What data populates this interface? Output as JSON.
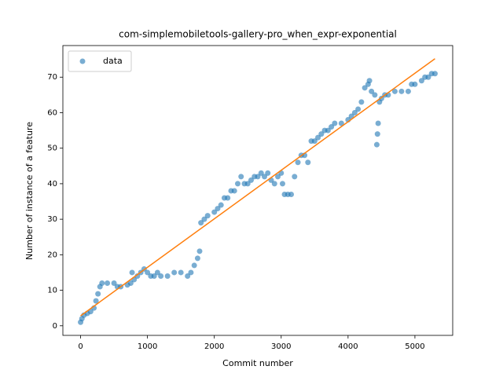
{
  "chart_data": {
    "type": "scatter",
    "title": "com-simplemobiletools-gallery-pro_when_expr-exponential",
    "x_label": "Commit number",
    "y_label": "Number of instance of a feature",
    "legend": "upper left",
    "xlim": [
      -265,
      5565
    ],
    "ylim": [
      -2.7,
      78.9
    ],
    "xticks": [
      0,
      1000,
      2000,
      3000,
      4000,
      5000
    ],
    "yticks": [
      0,
      10,
      20,
      30,
      40,
      50,
      60,
      70
    ],
    "series": [
      {
        "name": "data",
        "kind": "scatter",
        "color": "#1f77b4",
        "x": [
          0,
          20,
          50,
          100,
          150,
          200,
          230,
          260,
          290,
          320,
          400,
          500,
          550,
          600,
          700,
          750,
          770,
          800,
          850,
          900,
          950,
          1000,
          1050,
          1100,
          1150,
          1200,
          1300,
          1400,
          1500,
          1600,
          1650,
          1700,
          1750,
          1780,
          1800,
          1850,
          1900,
          2000,
          2050,
          2100,
          2150,
          2200,
          2250,
          2300,
          2350,
          2400,
          2450,
          2500,
          2550,
          2600,
          2650,
          2700,
          2750,
          2800,
          2850,
          2900,
          2950,
          3000,
          3020,
          3050,
          3100,
          3150,
          3200,
          3250,
          3300,
          3350,
          3400,
          3450,
          3500,
          3550,
          3600,
          3650,
          3700,
          3750,
          3800,
          3900,
          4000,
          4050,
          4100,
          4150,
          4200,
          4250,
          4300,
          4320,
          4350,
          4400,
          4430,
          4440,
          4450,
          4470,
          4500,
          4550,
          4600,
          4700,
          4800,
          4900,
          4950,
          5000,
          5100,
          5150,
          5200,
          5250,
          5300
        ],
        "values": [
          1,
          2,
          3,
          3.5,
          4,
          5,
          7,
          9,
          11,
          12,
          12,
          12,
          11,
          11,
          11.5,
          12,
          15,
          13,
          14,
          15,
          16,
          15,
          14,
          14,
          15,
          14,
          14,
          15,
          15,
          14,
          15,
          17,
          19,
          21,
          29,
          30,
          31,
          32,
          33,
          34,
          36,
          36,
          38,
          38,
          40,
          42,
          40,
          40,
          41,
          42,
          42,
          43,
          42,
          43,
          41,
          40,
          42,
          43,
          40,
          37,
          37,
          37,
          42,
          46,
          48,
          48,
          46,
          52,
          52,
          53,
          54,
          55,
          55,
          56,
          57,
          57,
          58,
          59,
          60,
          61,
          63,
          67,
          68,
          69,
          66,
          65,
          51,
          54,
          57,
          63,
          64,
          65,
          65,
          66,
          66,
          66,
          68,
          68,
          69,
          70,
          70,
          71,
          71
        ]
      },
      {
        "kind": "line",
        "color": "#ff7f0e",
        "x": [
          0,
          5300
        ],
        "values": [
          2.8,
          75.2
        ]
      }
    ]
  }
}
